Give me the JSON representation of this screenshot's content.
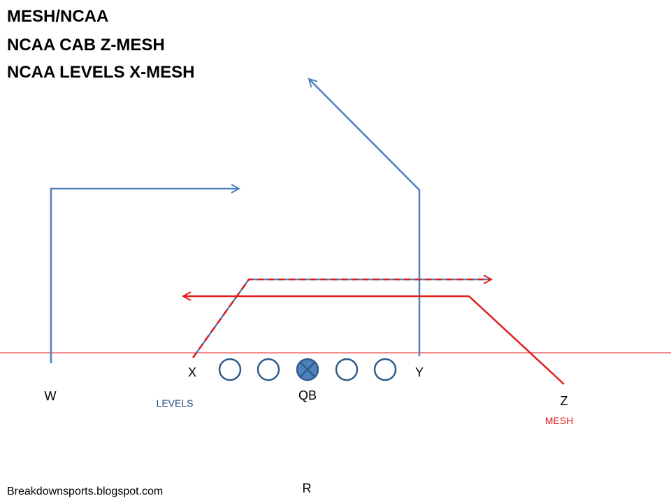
{
  "header": {
    "lines": [
      "MESH/NCAA",
      "NCAA CAB Z-MESH",
      "NCAA LEVELS X-MESH"
    ]
  },
  "players": {
    "w": "W",
    "x": "X",
    "qb": "QB",
    "y": "Y",
    "z": "Z",
    "r": "R"
  },
  "routes": {
    "x": "LEVELS",
    "z": "MESH"
  },
  "footer": "Breakdownsports.blogspot.com"
}
